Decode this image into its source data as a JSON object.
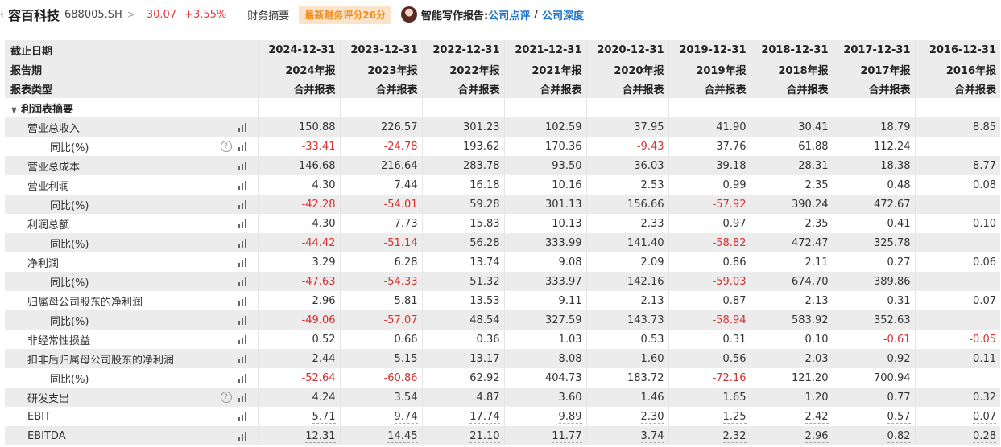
{
  "header": {
    "back_icon": "‹",
    "name": "容百科技",
    "code": "688005.SH",
    "code_chevron": ">",
    "price": "30.07",
    "change": "+3.55%",
    "summary": "财务摘要",
    "badge": "最新财务评分26分",
    "ai_label": "智能写作报告:",
    "link1": "公司点评",
    "slash": "/",
    "link2": "公司深度"
  },
  "table": {
    "head_labels": [
      "截止日期",
      "报告期",
      "报表类型"
    ],
    "dates": [
      "2024-12-31",
      "2023-12-31",
      "2022-12-31",
      "2021-12-31",
      "2020-12-31",
      "2019-12-31",
      "2018-12-31",
      "2017-12-31",
      "2016-12-31"
    ],
    "periods": [
      "2024年报",
      "2023年报",
      "2022年报",
      "2021年报",
      "2020年报",
      "2019年报",
      "2018年报",
      "2017年报",
      "2016年报"
    ],
    "types": [
      "合并报表",
      "合并报表",
      "合并报表",
      "合并报表",
      "合并报表",
      "合并报表",
      "合并报表",
      "合并报表",
      "合并报表"
    ],
    "section": "利润表摘要",
    "rows": [
      {
        "label": "营业总收入",
        "values": [
          "150.88",
          "226.57",
          "301.23",
          "102.59",
          "37.95",
          "41.90",
          "30.41",
          "18.79",
          "8.85"
        ]
      },
      {
        "label": "同比(%)",
        "values": [
          "-33.41",
          "-24.78",
          "193.62",
          "170.36",
          "-9.43",
          "37.76",
          "61.88",
          "112.24",
          ""
        ]
      },
      {
        "label": "营业总成本",
        "values": [
          "146.68",
          "216.64",
          "283.78",
          "93.50",
          "36.03",
          "39.18",
          "28.31",
          "18.38",
          "8.77"
        ]
      },
      {
        "label": "营业利润",
        "values": [
          "4.30",
          "7.44",
          "16.18",
          "10.16",
          "2.53",
          "0.99",
          "2.35",
          "0.48",
          "0.08"
        ]
      },
      {
        "label": "同比(%)",
        "values": [
          "-42.28",
          "-54.01",
          "59.28",
          "301.13",
          "156.66",
          "-57.92",
          "390.24",
          "472.67",
          ""
        ]
      },
      {
        "label": "利润总额",
        "values": [
          "4.30",
          "7.73",
          "15.83",
          "10.13",
          "2.33",
          "0.97",
          "2.35",
          "0.41",
          "0.10"
        ]
      },
      {
        "label": "同比(%)",
        "values": [
          "-44.42",
          "-51.14",
          "56.28",
          "333.99",
          "141.40",
          "-58.82",
          "472.47",
          "325.78",
          ""
        ]
      },
      {
        "label": "净利润",
        "values": [
          "3.29",
          "6.28",
          "13.74",
          "9.08",
          "2.09",
          "0.86",
          "2.11",
          "0.27",
          "0.06"
        ]
      },
      {
        "label": "同比(%)",
        "values": [
          "-47.63",
          "-54.33",
          "51.32",
          "333.97",
          "142.16",
          "-59.03",
          "674.70",
          "389.86",
          ""
        ]
      },
      {
        "label": "归属母公司股东的净利润",
        "values": [
          "2.96",
          "5.81",
          "13.53",
          "9.11",
          "2.13",
          "0.87",
          "2.13",
          "0.31",
          "0.07"
        ]
      },
      {
        "label": "同比(%)",
        "values": [
          "-49.06",
          "-57.07",
          "48.54",
          "327.59",
          "143.73",
          "-58.94",
          "583.92",
          "352.63",
          ""
        ]
      },
      {
        "label": "非经常性损益",
        "values": [
          "0.52",
          "0.66",
          "0.36",
          "1.03",
          "0.53",
          "0.31",
          "0.10",
          "-0.61",
          "-0.05"
        ]
      },
      {
        "label": "扣非后归属母公司股东的净利润",
        "values": [
          "2.44",
          "5.15",
          "13.17",
          "8.08",
          "1.60",
          "0.56",
          "2.03",
          "0.92",
          "0.11"
        ]
      },
      {
        "label": "同比(%)",
        "values": [
          "-52.64",
          "-60.86",
          "62.92",
          "404.73",
          "183.72",
          "-72.16",
          "121.20",
          "700.94",
          ""
        ]
      },
      {
        "label": "研发支出",
        "values": [
          "4.24",
          "3.54",
          "4.87",
          "3.60",
          "1.46",
          "1.65",
          "1.20",
          "0.77",
          "0.32"
        ]
      },
      {
        "label": "EBIT",
        "values": [
          "5.71",
          "9.74",
          "17.74",
          "9.89",
          "2.30",
          "1.25",
          "2.42",
          "0.57",
          "0.07"
        ]
      },
      {
        "label": "EBITDA",
        "values": [
          "12.31",
          "14.45",
          "21.10",
          "11.77",
          "3.74",
          "2.32",
          "2.96",
          "0.82",
          "0.28"
        ]
      }
    ]
  },
  "icons": {
    "help": "help-icon",
    "chart": "bar-chart-icon"
  },
  "colors": {
    "negative": "#d43030",
    "positive_price": "#e4393c",
    "link": "#1a73c8",
    "badge_bg": "#fbe3c9",
    "badge_fg": "#f08a1c"
  }
}
